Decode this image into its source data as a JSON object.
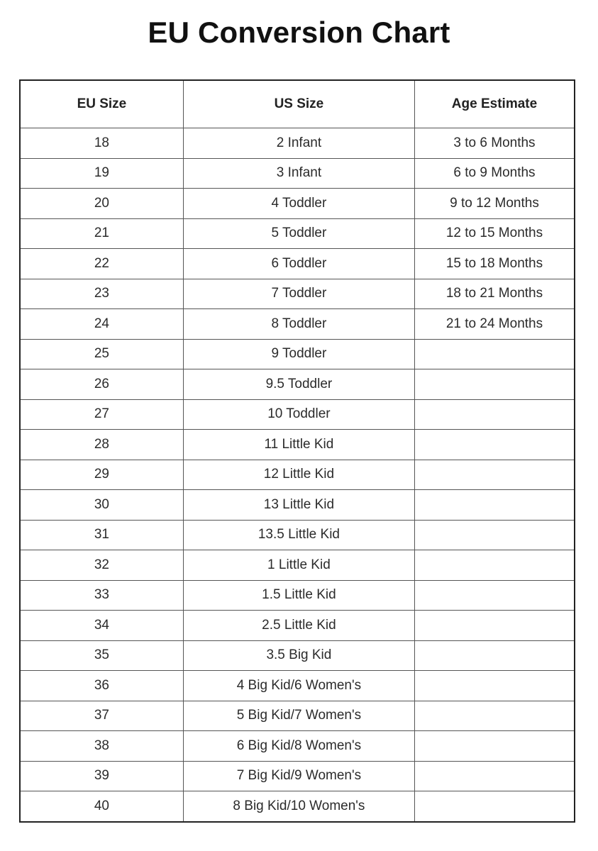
{
  "title": "EU Conversion Chart",
  "headers": [
    "EU Size",
    "US Size",
    "Age Estimate"
  ],
  "rows": [
    [
      "18",
      "2 Infant",
      "3 to 6 Months"
    ],
    [
      "19",
      "3 Infant",
      "6 to 9 Months"
    ],
    [
      "20",
      "4 Toddler",
      "9 to 12 Months"
    ],
    [
      "21",
      "5 Toddler",
      "12 to 15 Months"
    ],
    [
      "22",
      "6 Toddler",
      "15 to 18 Months"
    ],
    [
      "23",
      "7 Toddler",
      "18 to 21 Months"
    ],
    [
      "24",
      "8 Toddler",
      "21 to 24 Months"
    ],
    [
      "25",
      "9 Toddler",
      ""
    ],
    [
      "26",
      "9.5 Toddler",
      ""
    ],
    [
      "27",
      "10 Toddler",
      ""
    ],
    [
      "28",
      "11 Little Kid",
      ""
    ],
    [
      "29",
      "12 Little Kid",
      ""
    ],
    [
      "30",
      "13 Little Kid",
      ""
    ],
    [
      "31",
      "13.5 Little Kid",
      ""
    ],
    [
      "32",
      "1 Little Kid",
      ""
    ],
    [
      "33",
      "1.5 Little Kid",
      ""
    ],
    [
      "34",
      "2.5 Little Kid",
      ""
    ],
    [
      "35",
      "3.5 Big Kid",
      ""
    ],
    [
      "36",
      "4 Big Kid/6 Women's",
      ""
    ],
    [
      "37",
      "5 Big Kid/7 Women's",
      ""
    ],
    [
      "38",
      "6 Big Kid/8 Women's",
      ""
    ],
    [
      "39",
      "7 Big Kid/9 Women's",
      ""
    ],
    [
      "40",
      "8 Big Kid/10 Women's",
      ""
    ]
  ]
}
